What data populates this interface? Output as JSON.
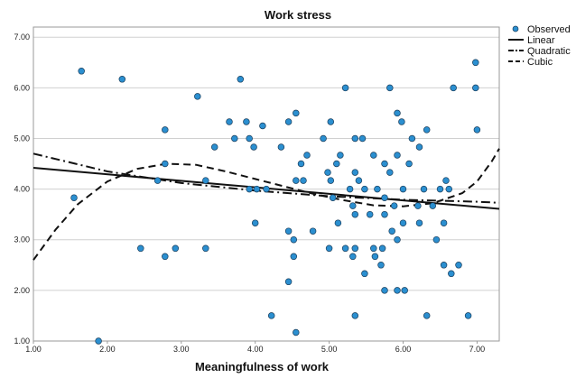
{
  "chart_data": {
    "type": "scatter",
    "title": "Work stress",
    "xlabel": "Meaningfulness of work",
    "ylabel": "",
    "xlim": [
      1.0,
      7.3
    ],
    "ylim": [
      1.0,
      7.2
    ],
    "xticks": [
      "1.00",
      "2.00",
      "3.00",
      "4.00",
      "5.00",
      "6.00",
      "7.00"
    ],
    "yticks": [
      "1.00",
      "2.00",
      "3.00",
      "4.00",
      "5.00",
      "6.00",
      "7.00"
    ],
    "grid": "horizontal",
    "legend_position": "top-right",
    "marker_color": "#2b8fd0",
    "series": [
      {
        "name": "Observed",
        "kind": "points",
        "points": [
          [
            1.55,
            3.83
          ],
          [
            1.65,
            6.33
          ],
          [
            1.88,
            1.0
          ],
          [
            2.2,
            6.17
          ],
          [
            2.45,
            2.83
          ],
          [
            2.68,
            4.17
          ],
          [
            2.78,
            5.17
          ],
          [
            2.78,
            4.5
          ],
          [
            2.78,
            2.67
          ],
          [
            2.92,
            2.83
          ],
          [
            3.22,
            5.83
          ],
          [
            3.33,
            2.83
          ],
          [
            3.33,
            4.17
          ],
          [
            3.45,
            4.83
          ],
          [
            3.65,
            5.33
          ],
          [
            3.72,
            5.0
          ],
          [
            3.8,
            6.17
          ],
          [
            3.88,
            5.33
          ],
          [
            3.92,
            5.0
          ],
          [
            3.92,
            4.0
          ],
          [
            3.98,
            4.83
          ],
          [
            4.0,
            3.33
          ],
          [
            4.02,
            4.0
          ],
          [
            4.1,
            5.25
          ],
          [
            4.15,
            4.0
          ],
          [
            4.22,
            1.5
          ],
          [
            4.35,
            4.83
          ],
          [
            4.45,
            5.33
          ],
          [
            4.45,
            3.17
          ],
          [
            4.45,
            2.17
          ],
          [
            4.52,
            3.0
          ],
          [
            4.52,
            2.67
          ],
          [
            4.55,
            4.17
          ],
          [
            4.55,
            5.5
          ],
          [
            4.55,
            1.17
          ],
          [
            4.62,
            4.5
          ],
          [
            4.65,
            4.17
          ],
          [
            4.7,
            4.67
          ],
          [
            4.78,
            3.17
          ],
          [
            4.92,
            5.0
          ],
          [
            4.98,
            4.33
          ],
          [
            5.0,
            2.83
          ],
          [
            5.02,
            5.33
          ],
          [
            5.02,
            4.17
          ],
          [
            5.05,
            3.83
          ],
          [
            5.1,
            4.5
          ],
          [
            5.12,
            3.33
          ],
          [
            5.15,
            4.67
          ],
          [
            5.22,
            6.0
          ],
          [
            5.22,
            2.83
          ],
          [
            5.28,
            4.0
          ],
          [
            5.32,
            3.67
          ],
          [
            5.32,
            2.67
          ],
          [
            5.35,
            5.0
          ],
          [
            5.35,
            4.33
          ],
          [
            5.35,
            3.5
          ],
          [
            5.35,
            2.83
          ],
          [
            5.35,
            1.5
          ],
          [
            5.4,
            4.17
          ],
          [
            5.45,
            5.0
          ],
          [
            5.48,
            4.0
          ],
          [
            5.48,
            2.33
          ],
          [
            5.55,
            3.5
          ],
          [
            5.6,
            4.67
          ],
          [
            5.6,
            2.83
          ],
          [
            5.62,
            2.67
          ],
          [
            5.65,
            4.0
          ],
          [
            5.7,
            2.5
          ],
          [
            5.72,
            2.83
          ],
          [
            5.75,
            4.5
          ],
          [
            5.75,
            3.83
          ],
          [
            5.75,
            3.5
          ],
          [
            5.75,
            2.0
          ],
          [
            5.82,
            6.0
          ],
          [
            5.82,
            4.33
          ],
          [
            5.85,
            3.17
          ],
          [
            5.88,
            3.67
          ],
          [
            5.92,
            5.5
          ],
          [
            5.92,
            4.67
          ],
          [
            5.92,
            3.0
          ],
          [
            5.92,
            2.0
          ],
          [
            5.98,
            5.33
          ],
          [
            6.0,
            4.0
          ],
          [
            6.0,
            3.33
          ],
          [
            6.02,
            2.0
          ],
          [
            6.08,
            4.5
          ],
          [
            6.12,
            5.0
          ],
          [
            6.2,
            3.67
          ],
          [
            6.22,
            4.83
          ],
          [
            6.22,
            3.33
          ],
          [
            6.28,
            4.0
          ],
          [
            6.32,
            5.17
          ],
          [
            6.32,
            1.5
          ],
          [
            6.4,
            3.67
          ],
          [
            6.45,
            3.0
          ],
          [
            6.5,
            4.0
          ],
          [
            6.55,
            3.33
          ],
          [
            6.55,
            2.5
          ],
          [
            6.58,
            4.17
          ],
          [
            6.62,
            4.0
          ],
          [
            6.65,
            2.33
          ],
          [
            6.68,
            6.0
          ],
          [
            6.75,
            2.5
          ],
          [
            6.88,
            1.5
          ],
          [
            6.98,
            6.0
          ],
          [
            6.98,
            6.5
          ],
          [
            7.0,
            5.17
          ]
        ]
      },
      {
        "name": "Linear",
        "kind": "line",
        "style": "solid",
        "points": [
          [
            1.0,
            4.42
          ],
          [
            7.3,
            3.61
          ]
        ]
      },
      {
        "name": "Quadratic",
        "kind": "line",
        "style": "dashdot",
        "points": [
          [
            1.0,
            4.7
          ],
          [
            2.0,
            4.35
          ],
          [
            3.0,
            4.12
          ],
          [
            4.0,
            3.97
          ],
          [
            5.0,
            3.86
          ],
          [
            6.0,
            3.79
          ],
          [
            7.0,
            3.75
          ],
          [
            7.3,
            3.73
          ]
        ]
      },
      {
        "name": "Cubic",
        "kind": "line",
        "style": "dashed",
        "points": [
          [
            1.0,
            2.6
          ],
          [
            1.3,
            3.2
          ],
          [
            1.6,
            3.7
          ],
          [
            2.0,
            4.15
          ],
          [
            2.4,
            4.4
          ],
          [
            2.8,
            4.5
          ],
          [
            3.2,
            4.48
          ],
          [
            3.6,
            4.35
          ],
          [
            4.0,
            4.2
          ],
          [
            4.4,
            4.05
          ],
          [
            4.8,
            3.9
          ],
          [
            5.2,
            3.78
          ],
          [
            5.6,
            3.68
          ],
          [
            6.0,
            3.66
          ],
          [
            6.4,
            3.72
          ],
          [
            6.8,
            3.92
          ],
          [
            7.0,
            4.15
          ],
          [
            7.2,
            4.55
          ],
          [
            7.3,
            4.8
          ]
        ]
      }
    ]
  }
}
